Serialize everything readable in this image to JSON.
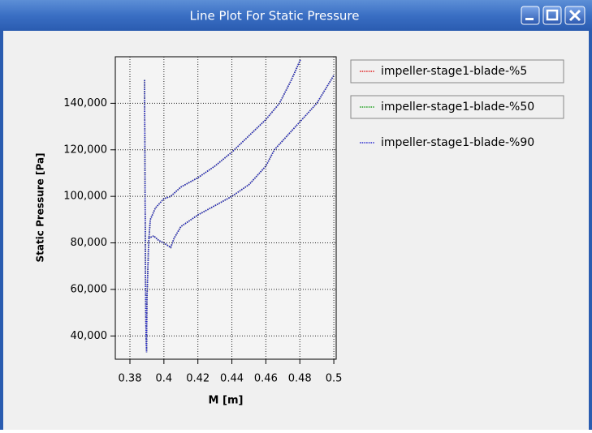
{
  "window": {
    "title": "Line Plot For Static Pressure"
  },
  "chart_data": {
    "type": "line",
    "x_label": "M [m]",
    "y_label": "Static Pressure [Pa]",
    "x": [
      0.3886,
      0.3888,
      0.389,
      0.3892,
      0.3895,
      0.3898,
      0.39,
      0.391,
      0.392,
      0.395,
      0.4,
      0.404,
      0.41,
      0.42,
      0.43,
      0.44,
      0.45,
      0.46,
      0.468,
      0.475,
      0.4805,
      null,
      0.391,
      0.394,
      0.397,
      0.4,
      0.404,
      0.406,
      0.41,
      0.42,
      0.43,
      0.44,
      0.45,
      0.46,
      0.465,
      0.475,
      0.49,
      0.5
    ],
    "series": [
      {
        "name": "impeller-stage1-blade-%5",
        "color": "#e02020",
        "values": [
          150000,
          120000,
          90000,
          60000,
          40000,
          33000,
          55000,
          80000,
          90000,
          95000,
          99000,
          100000,
          104000,
          108000,
          113000,
          119000,
          126000,
          133000,
          140000,
          150000,
          159000,
          null,
          82000,
          83000,
          81000,
          80000,
          78000,
          82000,
          87000,
          92000,
          96000,
          100000,
          105000,
          113000,
          120000,
          128000,
          140000,
          152000
        ]
      },
      {
        "name": "impeller-stage1-blade-%50",
        "color": "#20a020",
        "values": [
          150000,
          120000,
          90000,
          60000,
          40000,
          33000,
          55000,
          80000,
          90000,
          95000,
          99000,
          100000,
          104000,
          108000,
          113000,
          119000,
          126000,
          133000,
          140000,
          150000,
          159000,
          null,
          82000,
          83000,
          81000,
          80000,
          78000,
          82000,
          87000,
          92000,
          96000,
          100000,
          105000,
          113000,
          120000,
          128000,
          140000,
          152000
        ]
      },
      {
        "name": "impeller-stage1-blade-%90",
        "color": "#2828d0",
        "values": [
          150000,
          120000,
          90000,
          60000,
          40000,
          33000,
          55000,
          80000,
          90000,
          95000,
          99000,
          100000,
          104000,
          108000,
          113000,
          119000,
          126000,
          133000,
          140000,
          150000,
          159000,
          null,
          82000,
          83000,
          81000,
          80000,
          78000,
          82000,
          87000,
          92000,
          96000,
          100000,
          105000,
          113000,
          120000,
          128000,
          140000,
          152000
        ]
      }
    ],
    "xlim": [
      0.3714,
      0.5014
    ],
    "ylim": [
      30000,
      160000
    ],
    "xticks": [
      0.38,
      0.4,
      0.42,
      0.44,
      0.46,
      0.48,
      0.5
    ],
    "yticks": [
      {
        "value": 40000,
        "label": "40,000"
      },
      {
        "value": 60000,
        "label": "60,000"
      },
      {
        "value": 80000,
        "label": "80,000"
      },
      {
        "value": 100000,
        "label": "100,000"
      },
      {
        "value": 120000,
        "label": "120,000"
      },
      {
        "value": 140000,
        "label": "140,000"
      }
    ],
    "grid": true
  }
}
